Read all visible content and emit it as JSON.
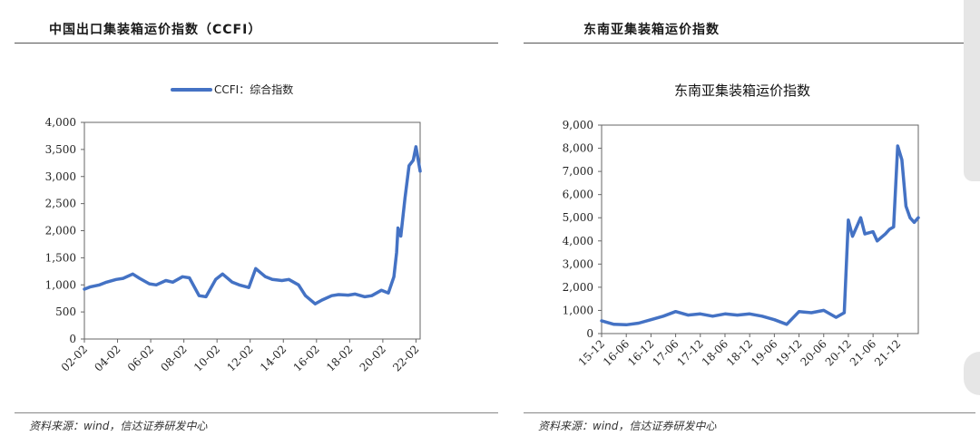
{
  "panels": [
    {
      "title": "中国出口集装箱运价指数（CCFI）",
      "source": "资料来源：wind，信达证券研发中心"
    },
    {
      "title": "东南亚集装箱运价指数",
      "source": "资料来源：wind，信达证券研发中心"
    }
  ],
  "chart_data": [
    {
      "type": "line",
      "title": "",
      "legend": "CCFI：综合指数",
      "legend_position": "top",
      "line_color": "#4472C4",
      "grid": false,
      "ylim": [
        0,
        4000
      ],
      "y_ticks": [
        "0",
        "500",
        "1,000",
        "1,500",
        "2,000",
        "2,500",
        "3,000",
        "3,500",
        "4,000"
      ],
      "x_ticks": [
        "02-02",
        "04-02",
        "06-02",
        "08-02",
        "10-02",
        "12-02",
        "14-02",
        "16-02",
        "18-02",
        "20-02",
        "22-02"
      ],
      "xlim": [
        "02-02",
        "22-05"
      ],
      "series": [
        {
          "name": "CCFI：综合指数",
          "x": [
            "02-02",
            "02-06",
            "03-01",
            "03-06",
            "04-01",
            "04-06",
            "05-01",
            "05-06",
            "06-01",
            "06-06",
            "07-01",
            "07-06",
            "08-01",
            "08-06",
            "09-01",
            "09-06",
            "10-01",
            "10-06",
            "11-01",
            "11-06",
            "12-01",
            "12-06",
            "13-01",
            "13-06",
            "14-01",
            "14-06",
            "15-01",
            "15-06",
            "16-01",
            "16-06",
            "17-01",
            "17-06",
            "18-01",
            "18-06",
            "19-01",
            "19-06",
            "20-01",
            "20-06",
            "20-10",
            "20-12",
            "21-01",
            "21-03",
            "21-06",
            "21-09",
            "21-12",
            "22-02",
            "22-05"
          ],
          "y": [
            920,
            960,
            1000,
            1050,
            1100,
            1120,
            1200,
            1120,
            1020,
            1000,
            1080,
            1050,
            1150,
            1130,
            800,
            780,
            1100,
            1200,
            1050,
            1000,
            950,
            1300,
            1150,
            1100,
            1080,
            1100,
            1000,
            800,
            650,
            720,
            800,
            820,
            810,
            830,
            780,
            800,
            900,
            850,
            1150,
            1600,
            2050,
            1900,
            2600,
            3200,
            3300,
            3550,
            3100
          ]
        }
      ]
    },
    {
      "type": "line",
      "title": "东南亚集装箱运价指数",
      "legend": "",
      "line_color": "#4472C4",
      "grid": false,
      "ylim": [
        0,
        9000
      ],
      "y_ticks": [
        "0",
        "1,000",
        "2,000",
        "3,000",
        "4,000",
        "5,000",
        "6,000",
        "7,000",
        "8,000",
        "9,000"
      ],
      "x_ticks": [
        "15-12",
        "16-06",
        "16-12",
        "17-06",
        "17-12",
        "18-06",
        "18-12",
        "19-06",
        "19-12",
        "20-06",
        "20-12",
        "21-06",
        "21-12"
      ],
      "xlim": [
        "15-12",
        "22-05"
      ],
      "series": [
        {
          "name": "",
          "x": [
            "15-12",
            "16-03",
            "16-06",
            "16-09",
            "16-12",
            "17-03",
            "17-06",
            "17-09",
            "17-12",
            "18-03",
            "18-06",
            "18-09",
            "18-12",
            "19-03",
            "19-06",
            "19-09",
            "19-12",
            "20-03",
            "20-06",
            "20-09",
            "20-11",
            "20-12",
            "21-01",
            "21-03",
            "21-04",
            "21-06",
            "21-07",
            "21-09",
            "21-10",
            "21-11",
            "21-12",
            "22-01",
            "22-02",
            "22-03",
            "22-04",
            "22-05"
          ],
          "y": [
            550,
            400,
            380,
            450,
            600,
            750,
            950,
            800,
            850,
            750,
            850,
            800,
            850,
            750,
            600,
            400,
            950,
            900,
            1000,
            700,
            900,
            4900,
            4200,
            5000,
            4300,
            4400,
            4000,
            4300,
            4500,
            4600,
            8100,
            7500,
            5500,
            5000,
            4800,
            5000
          ]
        }
      ]
    }
  ]
}
